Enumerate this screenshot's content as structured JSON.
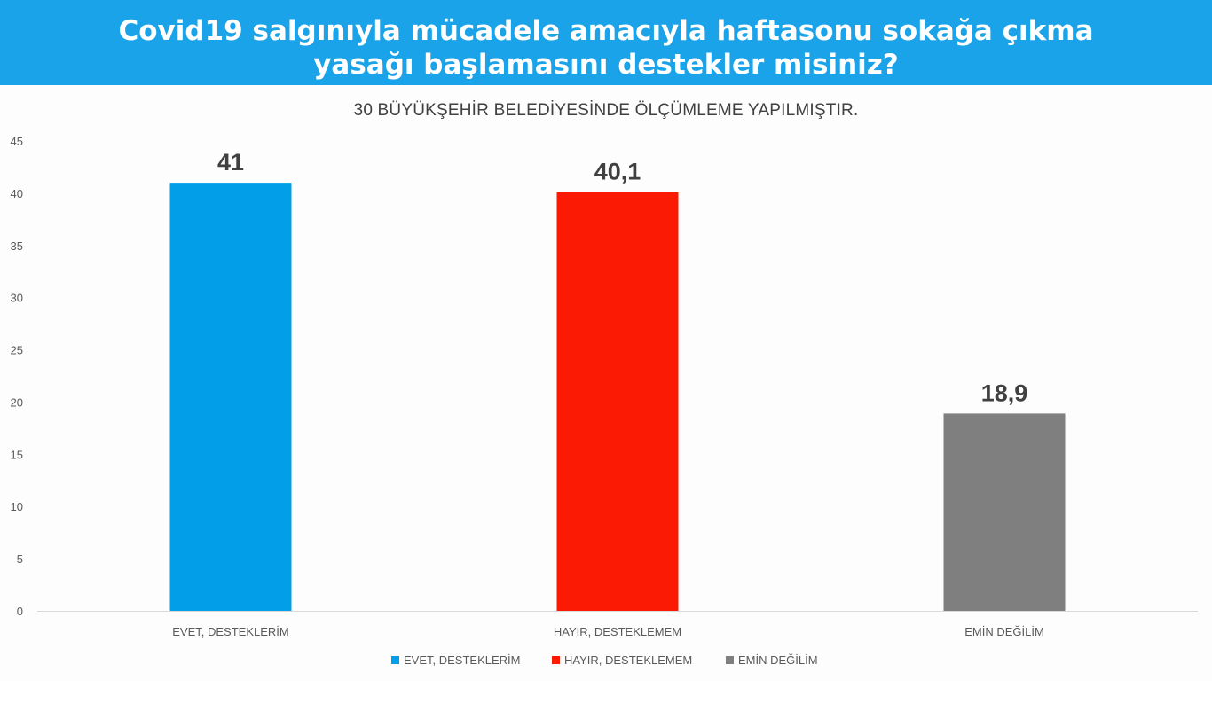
{
  "header": {
    "title_line1": "Covid19 salgınıyla mücadele amacıyla haftasonu sokağa çıkma",
    "title_line2": "yasağı başlamasını destekler misiniz?",
    "background": "#1aa3e8"
  },
  "chart_data": {
    "type": "bar",
    "subtitle": "30 BÜYÜKŞEHİR BELEDİYESİNDE ÖLÇÜMLEME YAPILMIŞTIR.",
    "categories": [
      "EVET, DESTEKLERİM",
      "HAYIR, DESTEKLEMEM",
      "EMİN DEĞİLİM"
    ],
    "values": [
      41,
      40.1,
      18.9
    ],
    "value_labels": [
      "41",
      "40,1",
      "18,9"
    ],
    "colors": [
      "#039ee8",
      "#fb1a03",
      "#7f7f7f"
    ],
    "ylim": [
      0,
      45
    ],
    "yticks": [
      "0",
      "5",
      "10",
      "15",
      "20",
      "25",
      "30",
      "35",
      "40",
      "45"
    ],
    "legend": {
      "position": "bottom",
      "entries": [
        "EVET, DESTEKLERİM",
        "HAYIR, DESTEKLEMEM",
        "EMİN DEĞİLİM"
      ]
    },
    "grid": false
  }
}
